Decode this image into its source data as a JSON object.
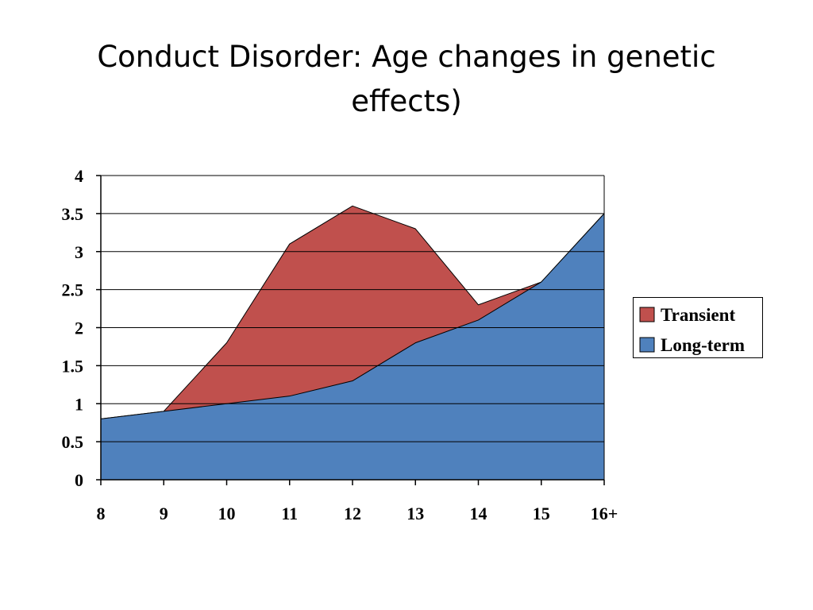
{
  "slide": {
    "title_line1": "Conduct Disorder: Age changes in genetic",
    "title_line2": "effects)"
  },
  "chart_data": {
    "type": "area",
    "stacked": false,
    "x": [
      "8",
      "9",
      "10",
      "11",
      "12",
      "13",
      "14",
      "15",
      "16+"
    ],
    "series": [
      {
        "name": "Transient",
        "values": [
          0.8,
          0.9,
          1.8,
          3.1,
          3.6,
          3.3,
          2.3,
          2.6,
          3.5
        ],
        "color": "#C0504D"
      },
      {
        "name": "Long-term",
        "values": [
          0.8,
          0.9,
          1.0,
          1.1,
          1.3,
          1.8,
          2.1,
          2.6,
          3.5
        ],
        "color": "#4F81BD"
      }
    ],
    "ylim": [
      0,
      4
    ],
    "yticks": [
      "0",
      "0.5",
      "1",
      "1.5",
      "2",
      "2.5",
      "3",
      "3.5",
      "4"
    ],
    "grid": true,
    "legend": "right"
  }
}
